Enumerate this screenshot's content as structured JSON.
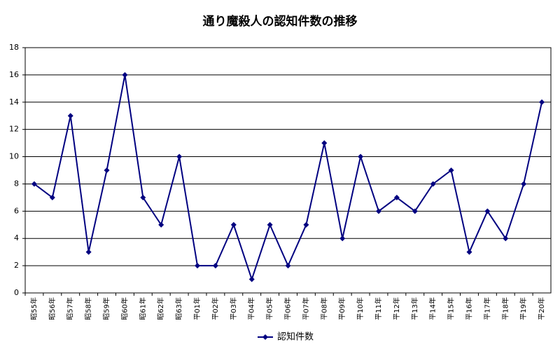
{
  "chart_data": {
    "type": "line",
    "title": "通り魔殺人の認知件数の推移",
    "categories": [
      "昭55年",
      "昭56年",
      "昭57年",
      "昭58年",
      "昭59年",
      "昭60年",
      "昭61年",
      "昭62年",
      "昭63年",
      "平01年",
      "平02年",
      "平03年",
      "平04年",
      "平05年",
      "平06年",
      "平07年",
      "平08年",
      "平09年",
      "平10年",
      "平11年",
      "平12年",
      "平13年",
      "平14年",
      "平15年",
      "平16年",
      "平17年",
      "平18年",
      "平19年",
      "平20年"
    ],
    "series": [
      {
        "name": "認知件数",
        "color": "#000080",
        "values": [
          8,
          7,
          13,
          3,
          9,
          16,
          7,
          5,
          10,
          2,
          2,
          5,
          1,
          5,
          2,
          5,
          11,
          4,
          10,
          6,
          7,
          6,
          8,
          9,
          3,
          6,
          4,
          8,
          14
        ]
      }
    ],
    "ylim": [
      0,
      18
    ],
    "yticks": [
      0,
      2,
      4,
      6,
      8,
      10,
      12,
      14,
      16,
      18
    ],
    "grid": true,
    "legend": "bottom"
  }
}
